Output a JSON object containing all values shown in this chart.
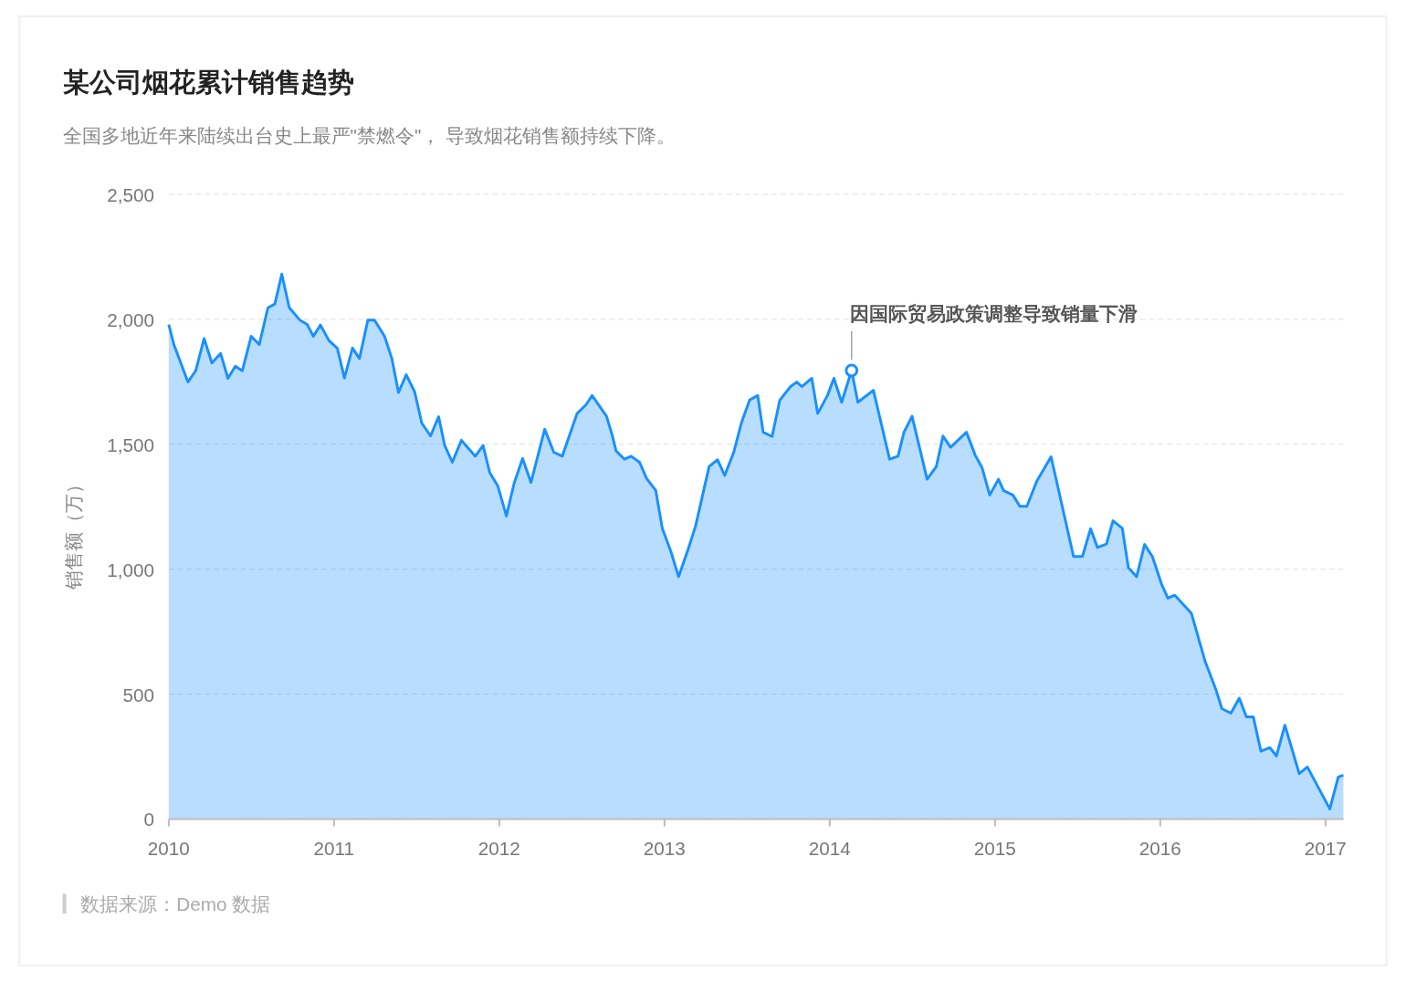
{
  "chart_data": {
    "type": "area",
    "title": "某公司烟花累计销售趋势",
    "subtitle": "全国多地近年来陆续出台史上最严\"禁燃令\"， 导致烟花销售额持续下降。",
    "ylabel": "销售额（万）",
    "x": [
      2010.0,
      2010.031,
      2010.116,
      2010.163,
      2010.214,
      2010.261,
      2010.314,
      2010.358,
      2010.403,
      2010.445,
      2010.499,
      2010.548,
      2010.6,
      2010.642,
      2010.684,
      2010.729,
      2010.793,
      2010.838,
      2010.875,
      2010.918,
      2010.969,
      2011.02,
      2011.063,
      2011.112,
      2011.154,
      2011.205,
      2011.245,
      2011.306,
      2011.35,
      2011.39,
      2011.437,
      2011.488,
      2011.531,
      2011.584,
      2011.633,
      2011.67,
      2011.716,
      2011.771,
      2011.855,
      2011.902,
      2011.942,
      2011.992,
      2012.043,
      2012.09,
      2012.141,
      2012.192,
      2012.275,
      2012.33,
      2012.381,
      2012.471,
      2012.526,
      2012.562,
      2012.649,
      2012.685,
      2012.707,
      2012.758,
      2012.798,
      2012.849,
      2012.892,
      2012.947,
      2012.987,
      2013.038,
      2013.085,
      2013.143,
      2013.188,
      2013.27,
      2013.321,
      2013.364,
      2013.419,
      2013.466,
      2013.515,
      2013.564,
      2013.597,
      2013.651,
      2013.698,
      2013.763,
      2013.8,
      2013.832,
      2013.891,
      2013.927,
      2013.986,
      2014.025,
      2014.072,
      2014.132,
      2014.17,
      2014.264,
      2014.362,
      2014.413,
      2014.449,
      2014.498,
      2014.589,
      2014.645,
      2014.685,
      2014.731,
      2014.827,
      2014.881,
      2014.921,
      2014.968,
      2015.021,
      2015.052,
      2015.108,
      2015.15,
      2015.193,
      2015.252,
      2015.339,
      2015.475,
      2015.529,
      2015.578,
      2015.62,
      2015.674,
      2015.714,
      2015.77,
      2015.807,
      2015.857,
      2015.905,
      2015.952,
      2016.01,
      2016.046,
      2016.088,
      2016.188,
      2016.273,
      2016.336,
      2016.373,
      2016.427,
      2016.478,
      2016.521,
      2016.563,
      2016.609,
      2016.663,
      2016.703,
      2016.754,
      2016.841,
      2016.89,
      2017.026,
      2017.077,
      2017.108
    ],
    "series": [
      {
        "color": "#1890ff",
        "values": [
          1979,
          1899,
          1749,
          1794,
          1923,
          1825,
          1863,
          1764,
          1812,
          1794,
          1932,
          1899,
          2046,
          2061,
          2181,
          2047,
          1997,
          1979,
          1932,
          1977,
          1915,
          1884,
          1765,
          1885,
          1843,
          1997,
          1997,
          1932,
          1843,
          1707,
          1778,
          1710,
          1585,
          1533,
          1610,
          1495,
          1428,
          1516,
          1452,
          1495,
          1387,
          1332,
          1213,
          1344,
          1443,
          1347,
          1560,
          1468,
          1452,
          1623,
          1659,
          1695,
          1612,
          1533,
          1473,
          1440,
          1452,
          1428,
          1363,
          1315,
          1162,
          1072,
          970,
          1080,
          1173,
          1411,
          1438,
          1375,
          1468,
          1587,
          1677,
          1695,
          1548,
          1531,
          1677,
          1731,
          1749,
          1731,
          1764,
          1623,
          1695,
          1764,
          1668,
          1795,
          1668,
          1716,
          1440,
          1452,
          1548,
          1612,
          1360,
          1411,
          1533,
          1488,
          1548,
          1455,
          1407,
          1297,
          1360,
          1314,
          1297,
          1252,
          1252,
          1351,
          1450,
          1051,
          1051,
          1162,
          1087,
          1101,
          1194,
          1164,
          1006,
          970,
          1099,
          1051,
          936,
          884,
          896,
          824,
          628,
          520,
          442,
          424,
          484,
          409,
          409,
          272,
          286,
          253,
          376,
          182,
          209,
          41,
          169,
          176
        ]
      }
    ],
    "xlim": [
      2010,
      2017.108
    ],
    "xticks": [
      2010,
      2011,
      2012,
      2013,
      2014,
      2015,
      2016,
      2017
    ],
    "ylim": [
      0,
      2500
    ],
    "yticks": [
      0,
      500,
      {
        "value": 1000,
        "label": "1,000"
      },
      {
        "value": 1500,
        "label": "1,500"
      },
      {
        "value": 2000,
        "label": "2,000"
      },
      {
        "value": 2500,
        "label": "2,500"
      }
    ],
    "grid": "y",
    "annotations": [
      {
        "text": "因国际贸易政策调整导致销量下滑",
        "x": 2014.132,
        "y": 1795
      },
      "数据来源：Demo 数据"
    ]
  }
}
